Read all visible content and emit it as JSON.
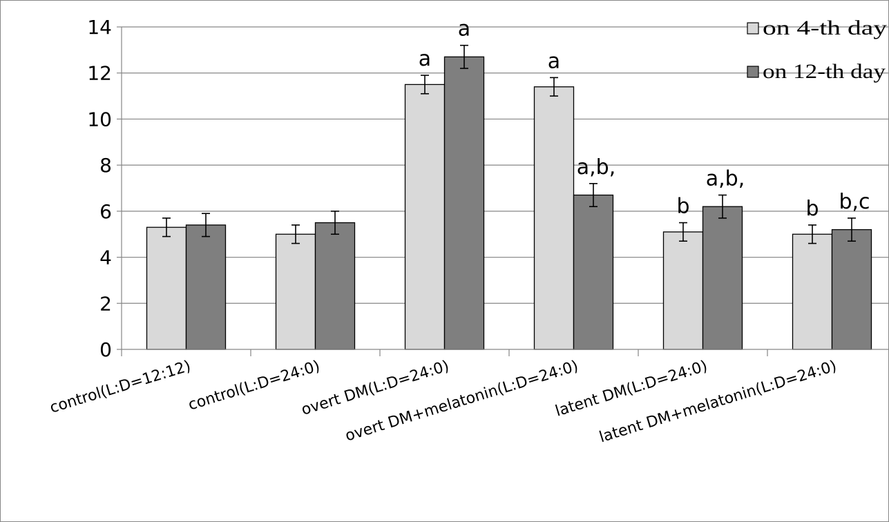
{
  "chart_data": {
    "type": "bar",
    "title": "",
    "xlabel": "",
    "ylabel": "",
    "ylim": [
      0,
      14
    ],
    "yticks": [
      0,
      2,
      4,
      6,
      8,
      10,
      12,
      14
    ],
    "grid": "horizontal",
    "legend_position": "top-right",
    "categories": [
      "control(L:D=12:12)",
      "control(L:D=24:0)",
      "overt DM(L:D=24:0)",
      "overt DM+melatonin(L:D=24:0)",
      "latent DM(L:D=24:0)",
      "latent DM+melatonin(L:D=24:0)"
    ],
    "series": [
      {
        "name": "on 4-th day",
        "color": "#d9d9d9",
        "values": [
          5.3,
          5.0,
          11.5,
          11.4,
          5.1,
          5.0
        ],
        "errors": [
          0.4,
          0.4,
          0.4,
          0.4,
          0.4,
          0.4
        ],
        "annotations": [
          "",
          "",
          "a",
          "a",
          "b",
          "b"
        ]
      },
      {
        "name": "on 12-th day",
        "color": "#7f7f7f",
        "values": [
          5.4,
          5.5,
          12.7,
          6.7,
          6.2,
          5.2
        ],
        "errors": [
          0.5,
          0.5,
          0.5,
          0.5,
          0.5,
          0.5
        ],
        "annotations": [
          "",
          "",
          "a",
          "a,b,",
          "a,b,",
          "b,c"
        ]
      }
    ]
  }
}
